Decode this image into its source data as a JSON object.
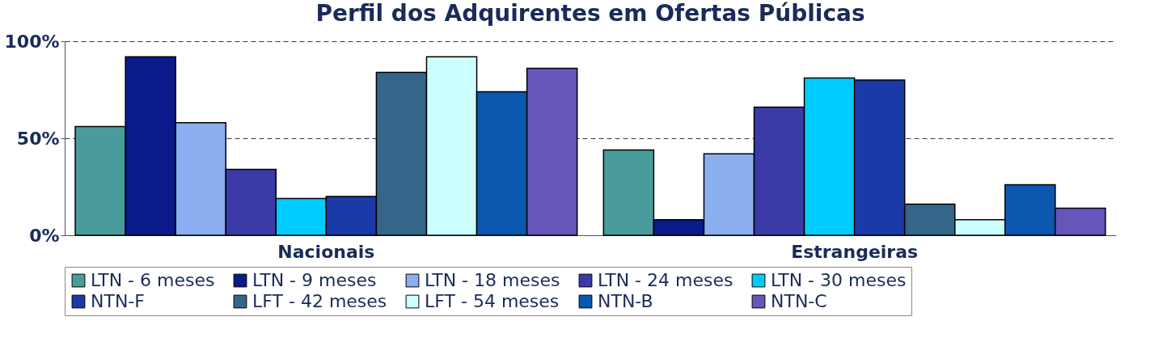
{
  "chart_data": {
    "type": "bar",
    "title": "Perfil dos Adquirentes em Ofertas Públicas",
    "categories": [
      "Nacionais",
      "Estrangeiras"
    ],
    "series": [
      {
        "name": "LTN - 6 meses",
        "color": "#4a9c9c",
        "values": [
          56,
          44
        ]
      },
      {
        "name": "LTN - 9 meses",
        "color": "#0a1a8a",
        "values": [
          92,
          8
        ]
      },
      {
        "name": "LTN - 18 meses",
        "color": "#8aaef0",
        "values": [
          58,
          42
        ]
      },
      {
        "name": "LTN - 24 meses",
        "color": "#3a3aa8",
        "values": [
          34,
          66
        ]
      },
      {
        "name": "LTN - 30 meses",
        "color": "#00ccff",
        "values": [
          19,
          81
        ]
      },
      {
        "name": "NTN-F",
        "color": "#1a3aa8",
        "values": [
          20,
          80
        ]
      },
      {
        "name": "LFT - 42 meses",
        "color": "#336688",
        "values": [
          84,
          16
        ]
      },
      {
        "name": "LFT - 54 meses",
        "color": "#ccffff",
        "values": [
          92,
          8
        ]
      },
      {
        "name": "NTN-B",
        "color": "#0a58b0",
        "values": [
          74,
          26
        ]
      },
      {
        "name": "NTN-C",
        "color": "#6655bb",
        "values": [
          86,
          14
        ]
      }
    ],
    "ylim": [
      0,
      100
    ],
    "yticks": [
      {
        "value": 0,
        "label": "0%"
      },
      {
        "value": 50,
        "label": "50%"
      },
      {
        "value": 100,
        "label": "100%"
      }
    ],
    "grid": "y",
    "legend": "bottom"
  }
}
